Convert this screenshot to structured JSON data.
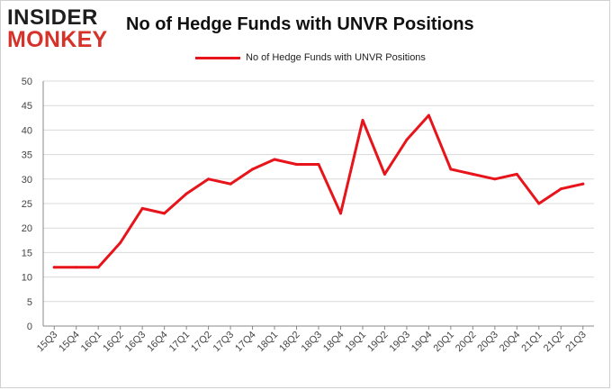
{
  "logo": {
    "top": "INSIDER",
    "bottom": "MONKEY"
  },
  "chart_data": {
    "type": "line",
    "title": "No of Hedge Funds with UNVR Positions",
    "xlabel": "",
    "ylabel": "",
    "ylim": [
      0,
      50
    ],
    "yticks": [
      0,
      5,
      10,
      15,
      20,
      25,
      30,
      35,
      40,
      45,
      50
    ],
    "grid": true,
    "legend_position": "top-center",
    "categories": [
      "15Q3",
      "15Q4",
      "16Q1",
      "16Q2",
      "16Q3",
      "16Q4",
      "17Q1",
      "17Q2",
      "17Q3",
      "17Q4",
      "18Q1",
      "18Q2",
      "18Q3",
      "18Q4",
      "19Q1",
      "19Q2",
      "19Q3",
      "19Q4",
      "20Q1",
      "20Q2",
      "20Q3",
      "20Q4",
      "21Q1",
      "21Q2",
      "21Q3"
    ],
    "series": [
      {
        "name": "No of Hedge Funds with UNVR Positions",
        "color": "#e8141b",
        "values": [
          12,
          12,
          12,
          17,
          24,
          23,
          27,
          30,
          29,
          32,
          34,
          33,
          33,
          23,
          42,
          31,
          38,
          43,
          32,
          31,
          30,
          31,
          25,
          28,
          29
        ]
      }
    ]
  }
}
